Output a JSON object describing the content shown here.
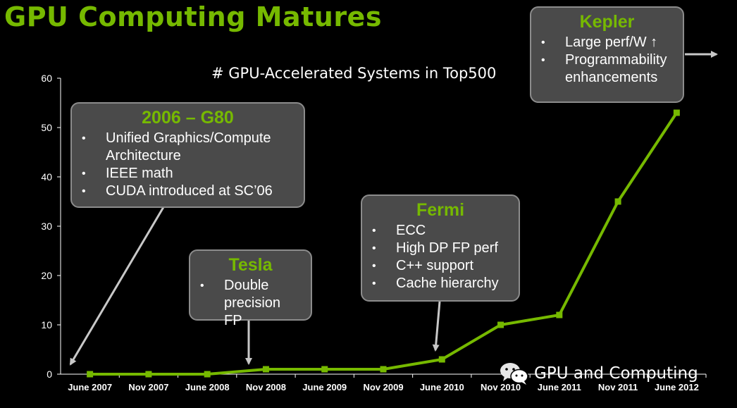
{
  "slide_title": "GPU Computing Matures",
  "colors": {
    "accent": "#76b900",
    "box_fill": "#4a4a4a",
    "box_border": "#8c8c8c",
    "arrow": "#c8c8c8"
  },
  "callouts": {
    "g80": {
      "title": "2006 – G80",
      "bullets": [
        "Unified Graphics/Compute Architecture",
        "IEEE math",
        "CUDA introduced at SC’06"
      ]
    },
    "tesla": {
      "title": "Tesla",
      "bullets": [
        "Double precision FP"
      ]
    },
    "fermi": {
      "title": "Fermi",
      "bullets": [
        "ECC",
        "High DP FP perf",
        "C++ support",
        "Cache hierarchy"
      ]
    },
    "kepler": {
      "title": "Kepler",
      "bullets": [
        "Large perf/W ↑",
        "Programmability enhancements"
      ]
    }
  },
  "watermark": {
    "text": "GPU and Computing",
    "icon": "wechat-icon"
  },
  "chart_data": {
    "type": "line",
    "title": "# GPU-Accelerated Systems in Top500",
    "xlabel": "",
    "ylabel": "",
    "categories": [
      "June 2007",
      "Nov 2007",
      "June 2008",
      "Nov 2008",
      "June 2009",
      "Nov 2009",
      "June 2010",
      "Nov 2010",
      "June 2011",
      "Nov 2011",
      "June 2012"
    ],
    "series": [
      {
        "name": "GPU-Accelerated Systems",
        "values": [
          0,
          0,
          0,
          1,
          1,
          1,
          3,
          10,
          12,
          35,
          53
        ]
      }
    ],
    "yticks": [
      0,
      10,
      20,
      30,
      40,
      50,
      60
    ],
    "ylim": [
      0,
      60
    ],
    "grid": false,
    "legend": "none"
  }
}
